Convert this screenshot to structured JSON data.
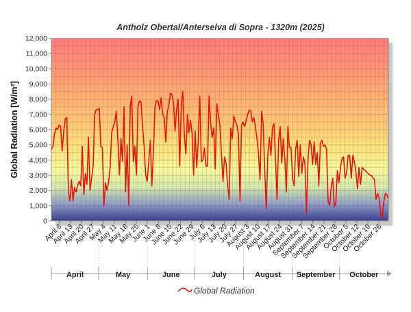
{
  "chart_data": {
    "type": "line",
    "title": "Antholz Obertal/Anterselva di Sopra - 1320m (2025)",
    "xlabel": "",
    "ylabel": "Global Radiation [W/m²]",
    "ylim": [
      0,
      12000
    ],
    "yticks": [
      "0",
      "1,000",
      "2,000",
      "3,000",
      "4,000",
      "5,000",
      "6,000",
      "7,000",
      "8,000",
      "9,000",
      "10,000",
      "11,000",
      "12,000"
    ],
    "xtick_labels": [
      "April 6",
      "April 13",
      "April 20",
      "April 27",
      "May 4",
      "May 11",
      "May 18",
      "May 25",
      "June 1",
      "June 8",
      "June 15",
      "June 22",
      "June 29",
      "July 6",
      "July 13",
      "July 20",
      "July 27",
      "August 3",
      "August 10",
      "August 17",
      "August 24",
      "August 31",
      "September 7",
      "September 14",
      "September 21",
      "September 28",
      "October 5",
      "October 12",
      "October 19",
      "October 26"
    ],
    "month_labels": [
      "April",
      "May",
      "June",
      "July",
      "August",
      "September",
      "October"
    ],
    "grid": true,
    "legend": "bottom-center",
    "x_start": "April 1",
    "x_end": "October 31",
    "series": [
      {
        "name": "Global Radiation",
        "color": "#e8140c",
        "values": [
          4700,
          4900,
          5700,
          6100,
          6000,
          6300,
          6200,
          4600,
          5900,
          6700,
          6800,
          2000,
          1300,
          2700,
          1300,
          2200,
          1900,
          2300,
          2600,
          2300,
          4900,
          1700,
          3100,
          2400,
          5500,
          2000,
          2800,
          3600,
          7000,
          7300,
          7300,
          7400,
          4900,
          4800,
          1000,
          2500,
          2000,
          2500,
          3500,
          5800,
          6200,
          6500,
          7200,
          5400,
          3000,
          5400,
          3900,
          7500,
          1900,
          5000,
          1000,
          7500,
          8200,
          3900,
          4900,
          3000,
          7500,
          7900,
          7800,
          6200,
          4900,
          3000,
          2600,
          3900,
          5300,
          2300,
          4500,
          7500,
          7900,
          7900,
          7300,
          8100,
          7000,
          6800,
          5200,
          7200,
          7600,
          8400,
          8300,
          7800,
          5900,
          7300,
          8000,
          3600,
          7500,
          8500,
          5600,
          4400,
          7000,
          5800,
          6600,
          5800,
          3000,
          5900,
          3500,
          5300,
          8200,
          3900,
          4000,
          4800,
          3600,
          3600,
          8200,
          6500,
          5500,
          6100,
          3400,
          7700,
          7000,
          6300,
          4400,
          2600,
          4200,
          3800,
          2300,
          1400,
          6100,
          5400,
          6900,
          6500,
          6300,
          5700,
          1300,
          6300,
          6500,
          6200,
          6600,
          7000,
          7300,
          7200,
          6500,
          6800,
          6200,
          5400,
          4400,
          2700,
          7200,
          6400,
          3300,
          800,
          4300,
          5500,
          4300,
          6100,
          6400,
          4000,
          1400,
          5300,
          6200,
          3800,
          5400,
          4100,
          1900,
          6200,
          4800,
          4800,
          2800,
          2300,
          4700,
          5300,
          2900,
          5000,
          3100,
          4200,
          3800,
          500,
          4000,
          5300,
          5000,
          3700,
          5200,
          3700,
          4500,
          2300,
          5100,
          5300,
          4900,
          5000,
          4700,
          1300,
          1000,
          2200,
          2800,
          900,
          1200,
          3300,
          2500,
          3500,
          4100,
          4200,
          2800,
          3200,
          4300,
          4300,
          2800,
          4300,
          3900,
          3200,
          2100,
          3500,
          2400,
          3500,
          3400,
          3300,
          3200,
          3100,
          3000,
          3000,
          2800,
          2700,
          1400,
          1800,
          1500,
          500,
          200,
          1200,
          1800,
          1700,
          1500
        ]
      }
    ]
  }
}
